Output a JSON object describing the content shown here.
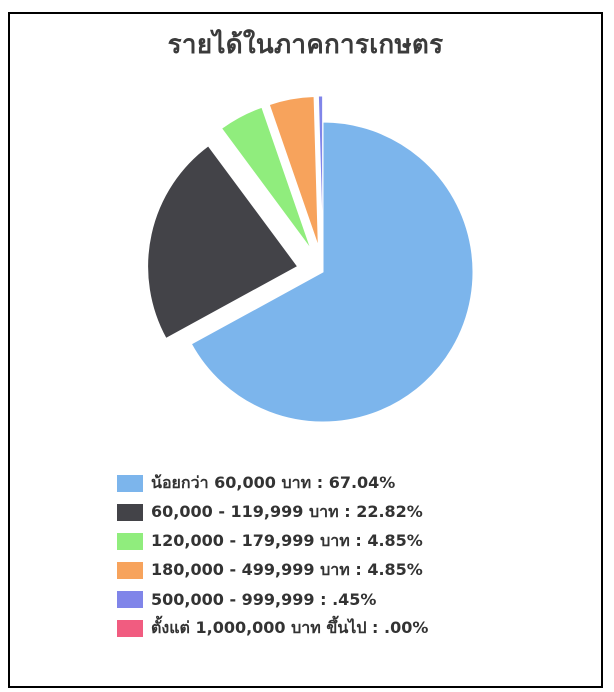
{
  "title": "รายได้ในภาคการเกษตร",
  "chart_data": {
    "type": "pie",
    "title": "รายได้ในภาคการเกษตร",
    "slices": [
      {
        "label": "น้อยกว่า 60,000 บาท : 67.04%",
        "value": 67.04,
        "color": "#7CB5EC",
        "exploded": false
      },
      {
        "label": "60,000 - 119,999 บาท : 22.82%",
        "value": 22.82,
        "color": "#434348",
        "exploded": true
      },
      {
        "label": "120,000 - 179,999 บาท : 4.85%",
        "value": 4.85,
        "color": "#90ED7D",
        "exploded": true
      },
      {
        "label": "180,000 - 499,999 บาท : 4.85%",
        "value": 4.85,
        "color": "#F7A35C",
        "exploded": true
      },
      {
        "label": "500,000 - 999,999 : .45%",
        "value": 0.45,
        "color": "#8085E9",
        "exploded": true
      },
      {
        "label": "ตั้งแต่ 1,000,000 บาท ขึ้นไป : .00%",
        "value": 0.0,
        "color": "#F15C80",
        "exploded": true
      }
    ],
    "legend_position": "bottom"
  }
}
